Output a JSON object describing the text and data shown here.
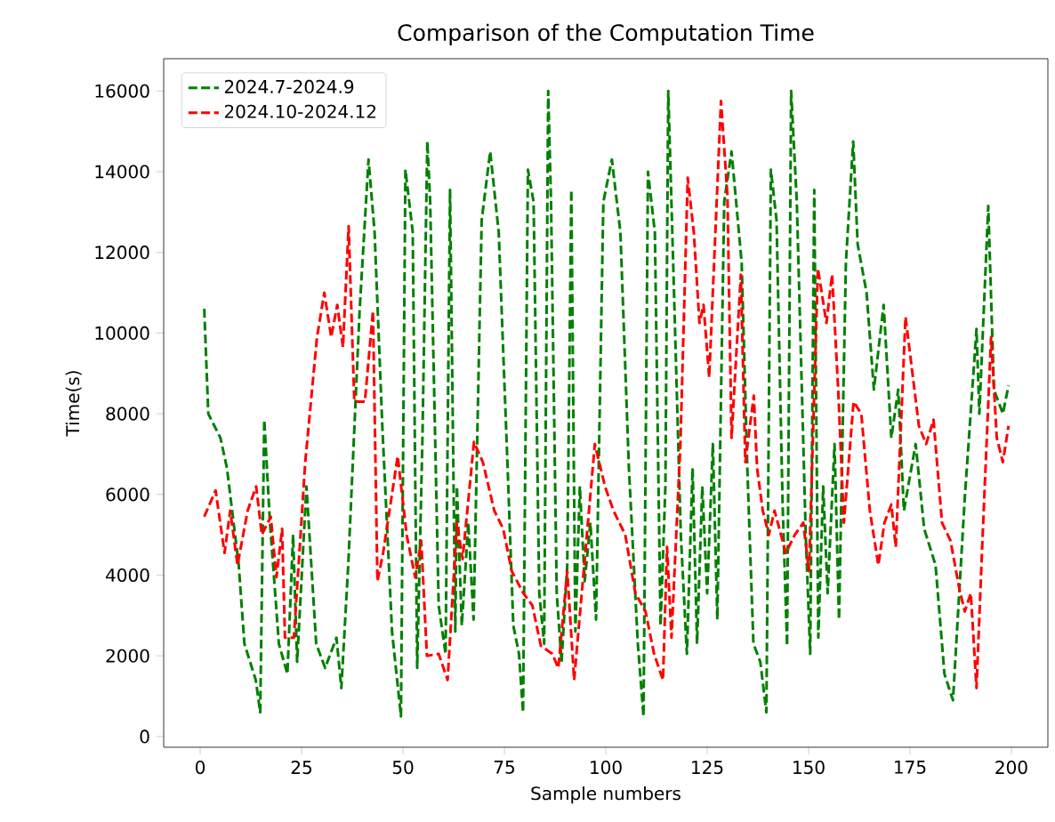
{
  "chart_data": {
    "type": "line",
    "title": "Comparison of the Computation Time",
    "xlabel": "Sample numbers",
    "ylabel": "Time(s)",
    "xlim": [
      -9,
      209
    ],
    "ylim": [
      -265,
      16800
    ],
    "xticks": [
      0,
      25,
      50,
      75,
      100,
      125,
      150,
      175,
      200
    ],
    "yticks": [
      0,
      2000,
      4000,
      6000,
      8000,
      10000,
      12000,
      14000,
      16000
    ],
    "legend": "top left",
    "line_style": "dashed",
    "grid": false,
    "series": [
      {
        "name": "2024.7-2024.9",
        "color": "#008000",
        "x": [
          1,
          2,
          5,
          6.6,
          9.5,
          10.9,
          13.7,
          14.8,
          15.8,
          17.2,
          19.4,
          21.5,
          22.9,
          23.9,
          26.2,
          28.6,
          30.8,
          33.6,
          34.8,
          36.5,
          39.3,
          41.5,
          43,
          44.9,
          47.3,
          49.5,
          50.6,
          52.4,
          53.5,
          54.8,
          56,
          56.7,
          58.8,
          60.5,
          61.6,
          62.9,
          63.3,
          64.5,
          66.1,
          67.4,
          69.4,
          71.5,
          73.6,
          75.8,
          77.2,
          78.6,
          79.6,
          80.8,
          82.2,
          83.6,
          84.8,
          85.8,
          86.5,
          87.9,
          89.1,
          90.5,
          91.5,
          92.5,
          93.6,
          94.8,
          96.2,
          97.6,
          99.4,
          101.5,
          103.6,
          105.7,
          107.9,
          109.3,
          110.4,
          112.1,
          113.5,
          114.7,
          115.4,
          116.4,
          118.5,
          120,
          121.4,
          122.5,
          123.8,
          125,
          126.4,
          127.5,
          129.2,
          131,
          133.5,
          134.9,
          136.4,
          138.1,
          139.6,
          140.7,
          142.1,
          143.6,
          144.7,
          145.7,
          147.1,
          149.3,
          150.4,
          151.4,
          152.4,
          153.6,
          154.7,
          156.4,
          157.5,
          159.2,
          161,
          162.1,
          164.3,
          166.1,
          168.5,
          170.4,
          172.1,
          173.5,
          176.4,
          178.5,
          181.3,
          183.5,
          185.6,
          188.5,
          191.4,
          192.1,
          194.3,
          195.7,
          197.9,
          199.3
        ],
        "values": [
          10600,
          8000,
          7400,
          6650,
          4250,
          2300,
          1400,
          600,
          7850,
          5300,
          2300,
          1550,
          5000,
          1850,
          6200,
          2300,
          1700,
          2450,
          1200,
          4250,
          10550,
          14300,
          12500,
          7700,
          2600,
          500,
          14050,
          12500,
          1700,
          7400,
          14750,
          13250,
          3250,
          2050,
          13550,
          2600,
          6200,
          2750,
          5300,
          2900,
          12800,
          14500,
          12500,
          6650,
          2750,
          2050,
          600,
          14050,
          13250,
          3550,
          2300,
          16000,
          13250,
          3550,
          1850,
          4250,
          13550,
          2600,
          6200,
          3850,
          5300,
          2900,
          13250,
          14300,
          12500,
          6650,
          2300,
          500,
          14000,
          12500,
          2750,
          6200,
          16000,
          12500,
          5000,
          2050,
          6650,
          2300,
          6200,
          3550,
          7250,
          2900,
          13250,
          14500,
          11750,
          6650,
          2300,
          1850,
          600,
          14050,
          12800,
          5750,
          2250,
          16000,
          13250,
          5000,
          2050,
          13550,
          2450,
          6200,
          3550,
          7250,
          2900,
          11750,
          14750,
          12200,
          11000,
          8600,
          10700,
          7400,
          8600,
          5600,
          7250,
          5150,
          4250,
          1550,
          900,
          5900,
          10100,
          8000,
          13150,
          8600,
          8000,
          8700
        ]
      },
      {
        "name": "2024.10-2024.12",
        "color": "#ff0000",
        "x": [
          1,
          3.8,
          6,
          7.4,
          9.2,
          11.7,
          13.8,
          15.2,
          17.4,
          18.8,
          20.2,
          20.9,
          23.1,
          25.9,
          28.8,
          30.6,
          32.3,
          33.8,
          35.2,
          36.6,
          38,
          40.6,
          42.6,
          43.7,
          45.1,
          48.7,
          50.9,
          53,
          54.5,
          55.9,
          58.8,
          61,
          63.3,
          64.7,
          67.5,
          69.7,
          72.5,
          74.7,
          76.8,
          79.7,
          81.9,
          84,
          86.8,
          88.3,
          90.5,
          92.2,
          97.3,
          99.8,
          101.9,
          104.8,
          107.3,
          109.8,
          111.9,
          114.1,
          115.1,
          116.2,
          118.4,
          120.2,
          121.7,
          123.1,
          124.1,
          125.5,
          128.4,
          130,
          131,
          133.3,
          134.4,
          136.5,
          137.3,
          138.7,
          140.2,
          141.6,
          144.4,
          146.6,
          148.7,
          150.1,
          152.3,
          154.4,
          155.8,
          157.3,
          158.7,
          161.1,
          163,
          165.1,
          167.2,
          168.7,
          170.4,
          171.5,
          173.9,
          177.2,
          179,
          180.8,
          182.9,
          185,
          187.1,
          188.5,
          190,
          191.4,
          192.8,
          195,
          196.4,
          197.9,
          199.3
        ],
        "values": [
          5450,
          6100,
          4550,
          5600,
          4250,
          5600,
          6200,
          5000,
          5450,
          3950,
          5150,
          2450,
          2450,
          6800,
          9900,
          11000,
          9900,
          10700,
          9650,
          12650,
          8300,
          8300,
          10550,
          3850,
          4550,
          6950,
          5000,
          3950,
          4850,
          2000,
          2050,
          1400,
          5300,
          4400,
          7300,
          6800,
          5600,
          5150,
          4100,
          3550,
          3250,
          2250,
          2050,
          1700,
          4100,
          1400,
          7250,
          6200,
          5600,
          5000,
          3550,
          3100,
          2050,
          1400,
          4700,
          2450,
          7250,
          13850,
          12500,
          10250,
          10700,
          8900,
          15750,
          13400,
          7400,
          11450,
          6800,
          8450,
          6650,
          5600,
          5000,
          5600,
          4550,
          5000,
          5300,
          4100,
          11600,
          10250,
          11450,
          8600,
          5300,
          8300,
          8000,
          5600,
          4250,
          5300,
          5750,
          4700,
          10400,
          7700,
          7250,
          7850,
          5300,
          4850,
          3700,
          3100,
          3550,
          1200,
          4700,
          9900,
          7400,
          6800,
          7700
        ]
      }
    ]
  }
}
